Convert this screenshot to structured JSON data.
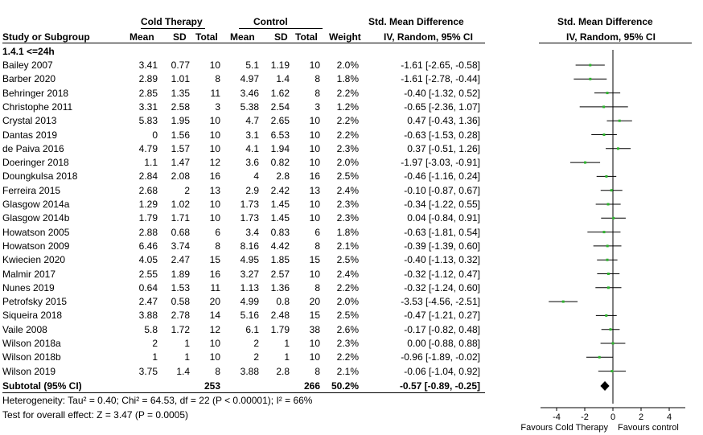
{
  "header": {
    "group_cold": "Cold Therapy",
    "group_control": "Control",
    "effect_title": "Std. Mean Difference",
    "plot_title": "Std. Mean Difference",
    "col_study": "Study or Subgroup",
    "col_mean1": "Mean",
    "col_sd1": "SD",
    "col_total1": "Total",
    "col_mean2": "Mean",
    "col_sd2": "SD",
    "col_total2": "Total",
    "col_weight": "Weight",
    "col_ci": "IV, Random, 95% CI",
    "col_plot_ci": "IV, Random, 95% CI"
  },
  "subgroup_label": "1.4.1 <=24h",
  "studies": [
    {
      "name": "Bailey 2007",
      "m1": "3.41",
      "sd1": "0.77",
      "n1": "10",
      "m2": "5.1",
      "sd2": "1.19",
      "n2": "10",
      "weight": "2.0%",
      "ci": "-1.61 [-2.65, -0.58]",
      "est": -1.61,
      "lo": -2.65,
      "hi": -0.58
    },
    {
      "name": "Barber 2020",
      "m1": "2.89",
      "sd1": "1.01",
      "n1": "8",
      "m2": "4.97",
      "sd2": "1.4",
      "n2": "8",
      "weight": "1.8%",
      "ci": "-1.61 [-2.78, -0.44]",
      "est": -1.61,
      "lo": -2.78,
      "hi": -0.44
    },
    {
      "name": "Behringer 2018",
      "m1": "2.85",
      "sd1": "1.35",
      "n1": "11",
      "m2": "3.46",
      "sd2": "1.62",
      "n2": "8",
      "weight": "2.2%",
      "ci": "-0.40 [-1.32, 0.52]",
      "est": -0.4,
      "lo": -1.32,
      "hi": 0.52
    },
    {
      "name": "Christophe 2011",
      "m1": "3.31",
      "sd1": "2.58",
      "n1": "3",
      "m2": "5.38",
      "sd2": "2.54",
      "n2": "3",
      "weight": "1.2%",
      "ci": "-0.65 [-2.36, 1.07]",
      "est": -0.65,
      "lo": -2.36,
      "hi": 1.07
    },
    {
      "name": "Crystal 2013",
      "m1": "5.83",
      "sd1": "1.95",
      "n1": "10",
      "m2": "4.7",
      "sd2": "2.65",
      "n2": "10",
      "weight": "2.2%",
      "ci": "0.47 [-0.43, 1.36]",
      "est": 0.47,
      "lo": -0.43,
      "hi": 1.36
    },
    {
      "name": "Dantas 2019",
      "m1": "0",
      "sd1": "1.56",
      "n1": "10",
      "m2": "3.1",
      "sd2": "6.53",
      "n2": "10",
      "weight": "2.2%",
      "ci": "-0.63 [-1.53, 0.28]",
      "est": -0.63,
      "lo": -1.53,
      "hi": 0.28
    },
    {
      "name": "de Paiva 2016",
      "m1": "4.79",
      "sd1": "1.57",
      "n1": "10",
      "m2": "4.1",
      "sd2": "1.94",
      "n2": "10",
      "weight": "2.3%",
      "ci": "0.37 [-0.51, 1.26]",
      "est": 0.37,
      "lo": -0.51,
      "hi": 1.26
    },
    {
      "name": "Doeringer 2018",
      "m1": "1.1",
      "sd1": "1.47",
      "n1": "12",
      "m2": "3.6",
      "sd2": "0.82",
      "n2": "10",
      "weight": "2.0%",
      "ci": "-1.97 [-3.03, -0.91]",
      "est": -1.97,
      "lo": -3.03,
      "hi": -0.91
    },
    {
      "name": "Doungkulsa 2018",
      "m1": "2.84",
      "sd1": "2.08",
      "n1": "16",
      "m2": "4",
      "sd2": "2.8",
      "n2": "16",
      "weight": "2.5%",
      "ci": "-0.46 [-1.16, 0.24]",
      "est": -0.46,
      "lo": -1.16,
      "hi": 0.24
    },
    {
      "name": "Ferreira 2015",
      "m1": "2.68",
      "sd1": "2",
      "n1": "13",
      "m2": "2.9",
      "sd2": "2.42",
      "n2": "13",
      "weight": "2.4%",
      "ci": "-0.10 [-0.87, 0.67]",
      "est": -0.1,
      "lo": -0.87,
      "hi": 0.67
    },
    {
      "name": "Glasgow 2014a",
      "m1": "1.29",
      "sd1": "1.02",
      "n1": "10",
      "m2": "1.73",
      "sd2": "1.45",
      "n2": "10",
      "weight": "2.3%",
      "ci": "-0.34 [-1.22, 0.55]",
      "est": -0.34,
      "lo": -1.22,
      "hi": 0.55
    },
    {
      "name": "Glasgow 2014b",
      "m1": "1.79",
      "sd1": "1.71",
      "n1": "10",
      "m2": "1.73",
      "sd2": "1.45",
      "n2": "10",
      "weight": "2.3%",
      "ci": "0.04 [-0.84, 0.91]",
      "est": 0.04,
      "lo": -0.84,
      "hi": 0.91
    },
    {
      "name": "Howatson 2005",
      "m1": "2.88",
      "sd1": "0.68",
      "n1": "6",
      "m2": "3.4",
      "sd2": "0.83",
      "n2": "6",
      "weight": "1.8%",
      "ci": "-0.63 [-1.81, 0.54]",
      "est": -0.63,
      "lo": -1.81,
      "hi": 0.54
    },
    {
      "name": "Howatson 2009",
      "m1": "6.46",
      "sd1": "3.74",
      "n1": "8",
      "m2": "8.16",
      "sd2": "4.42",
      "n2": "8",
      "weight": "2.1%",
      "ci": "-0.39 [-1.39, 0.60]",
      "est": -0.39,
      "lo": -1.39,
      "hi": 0.6
    },
    {
      "name": "Kwiecien 2020",
      "m1": "4.05",
      "sd1": "2.47",
      "n1": "15",
      "m2": "4.95",
      "sd2": "1.85",
      "n2": "15",
      "weight": "2.5%",
      "ci": "-0.40 [-1.13, 0.32]",
      "est": -0.4,
      "lo": -1.13,
      "hi": 0.32
    },
    {
      "name": "Malmir 2017",
      "m1": "2.55",
      "sd1": "1.89",
      "n1": "16",
      "m2": "3.27",
      "sd2": "2.57",
      "n2": "10",
      "weight": "2.4%",
      "ci": "-0.32 [-1.12, 0.47]",
      "est": -0.32,
      "lo": -1.12,
      "hi": 0.47
    },
    {
      "name": "Nunes 2019",
      "m1": "0.64",
      "sd1": "1.53",
      "n1": "11",
      "m2": "1.13",
      "sd2": "1.36",
      "n2": "8",
      "weight": "2.2%",
      "ci": "-0.32 [-1.24, 0.60]",
      "est": -0.32,
      "lo": -1.24,
      "hi": 0.6
    },
    {
      "name": "Petrofsky  2015",
      "m1": "2.47",
      "sd1": "0.58",
      "n1": "20",
      "m2": "4.99",
      "sd2": "0.8",
      "n2": "20",
      "weight": "2.0%",
      "ci": "-3.53 [-4.56, -2.51]",
      "est": -3.53,
      "lo": -4.56,
      "hi": -2.51
    },
    {
      "name": "Siqueira 2018",
      "m1": "3.88",
      "sd1": "2.78",
      "n1": "14",
      "m2": "5.16",
      "sd2": "2.48",
      "n2": "15",
      "weight": "2.5%",
      "ci": "-0.47 [-1.21, 0.27]",
      "est": -0.47,
      "lo": -1.21,
      "hi": 0.27
    },
    {
      "name": "Vaile 2008",
      "m1": "5.8",
      "sd1": "1.72",
      "n1": "12",
      "m2": "6.1",
      "sd2": "1.79",
      "n2": "38",
      "weight": "2.6%",
      "ci": "-0.17 [-0.82, 0.48]",
      "est": -0.17,
      "lo": -0.82,
      "hi": 0.48
    },
    {
      "name": "Wilson 2018a",
      "m1": "2",
      "sd1": "1",
      "n1": "10",
      "m2": "2",
      "sd2": "1",
      "n2": "10",
      "weight": "2.3%",
      "ci": "0.00 [-0.88, 0.88]",
      "est": 0.0,
      "lo": -0.88,
      "hi": 0.88
    },
    {
      "name": "Wilson 2018b",
      "m1": "1",
      "sd1": "1",
      "n1": "10",
      "m2": "2",
      "sd2": "1",
      "n2": "10",
      "weight": "2.2%",
      "ci": "-0.96 [-1.89, -0.02]",
      "est": -0.96,
      "lo": -1.89,
      "hi": -0.02
    },
    {
      "name": "Wilson 2019",
      "m1": "3.75",
      "sd1": "1.4",
      "n1": "8",
      "m2": "3.88",
      "sd2": "2.8",
      "n2": "8",
      "weight": "2.1%",
      "ci": "-0.06 [-1.04, 0.92]",
      "est": -0.06,
      "lo": -1.04,
      "hi": 0.92
    }
  ],
  "subtotal": {
    "label": "Subtotal (95% CI)",
    "n1": "253",
    "n2": "266",
    "weight": "50.2%",
    "ci": "-0.57 [-0.89, -0.25]",
    "est": -0.57,
    "lo": -0.89,
    "hi": -0.25
  },
  "heterogeneity": "Heterogeneity: Tau² = 0.40; Chi² = 64.53, df = 22 (P < 0.00001); I² = 66%",
  "overall_test": "Test for overall effect: Z = 3.47 (P = 0.0005)",
  "chart_data": {
    "type": "forest",
    "xlim": [
      -4.5,
      4.5
    ],
    "xticks": [
      -4,
      -2,
      0,
      2,
      4
    ],
    "xtick_labels": [
      "-4",
      "-2",
      "0",
      "2",
      "4"
    ],
    "null_line": 0,
    "favours_left": "Favours Cold Therapy",
    "favours_right": "Favours control",
    "marker_color": "#2db52d",
    "line_color": "#000000"
  }
}
